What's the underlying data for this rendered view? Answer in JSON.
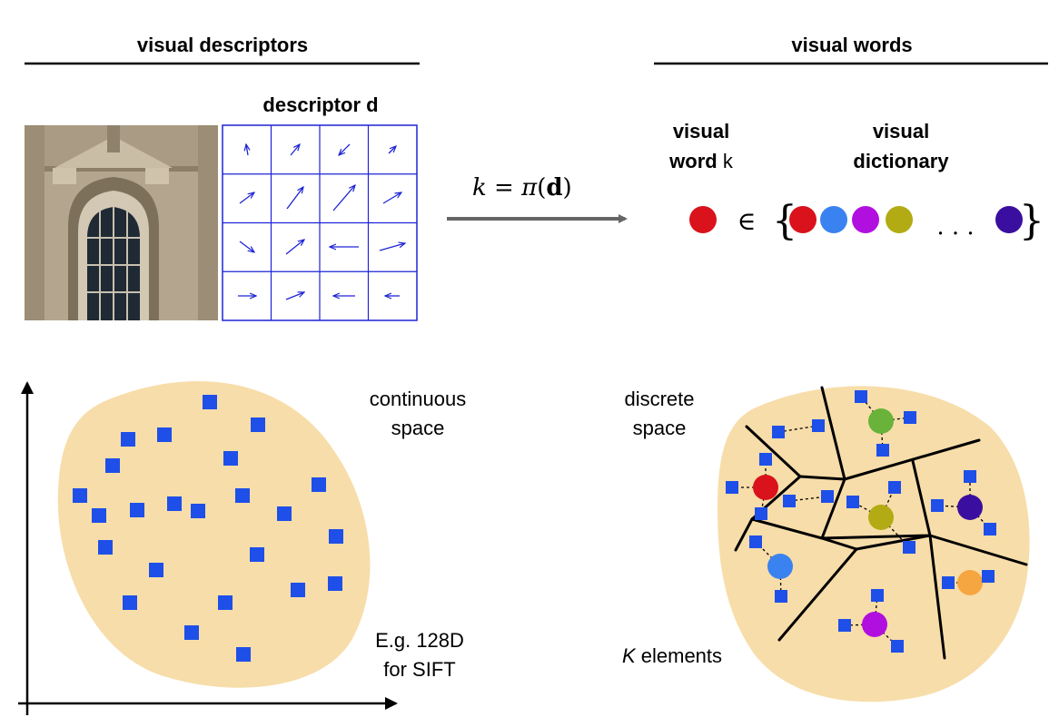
{
  "headers": {
    "left": "visual descriptors",
    "right": "visual words"
  },
  "descriptor": {
    "label": "descriptor d",
    "image_alt": "building facade with arched window"
  },
  "mapping": {
    "k": "k",
    "eq": " = ",
    "pi": "π",
    "open": "(",
    "d": "d",
    "close": ")"
  },
  "word": {
    "line1": "visual",
    "line2_bold": "word",
    "line2_plain": " k"
  },
  "dictionary": {
    "line1": "visual",
    "line2": "dictionary",
    "member_symbol": "∈",
    "brace_open": "{",
    "brace_close": "}",
    "ellipsis": ". . .",
    "word_color": "#d9121b",
    "colors": [
      "#d9121b",
      "#3a82f0",
      "#b10fe0",
      "#b2ab13",
      "#3a0e9f"
    ]
  },
  "continuous": {
    "line1": "continuous",
    "line2": "space",
    "note_line1": "E.g. 128D",
    "note_line2": "for SIFT"
  },
  "discrete": {
    "line1": "discrete",
    "line2": "space",
    "elements_k": "K",
    "elements_rest": " elements"
  },
  "colors": {
    "blob": "#f7dda9",
    "point": "#1e4fe8",
    "grid": "#1e24d6",
    "arrow": "#666666",
    "cluster_green": "#6ab33a",
    "cluster_red": "#d9121b",
    "cluster_olive": "#b2ab13",
    "cluster_indigo": "#3a0e9f",
    "cluster_blue": "#3a82f0",
    "cluster_orange": "#f5a640",
    "cluster_purple": "#b10fe0"
  }
}
